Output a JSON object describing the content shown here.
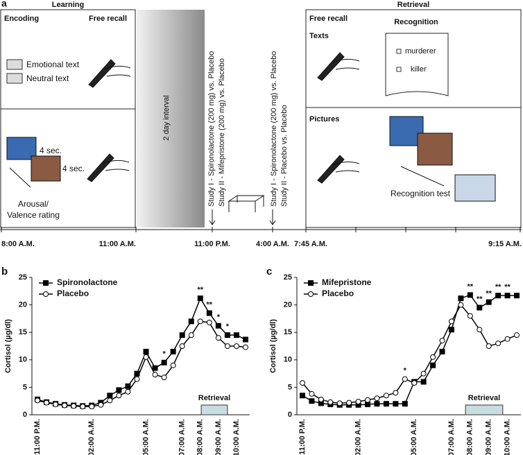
{
  "panel_a": {
    "label": "a",
    "learning": {
      "title": "Learning",
      "encoding": "Encoding",
      "free_recall": "Free recall",
      "texts": [
        "Emotional text",
        "Neutral text"
      ],
      "durations": [
        "4 sec.",
        "4 sec."
      ],
      "rating": [
        "Arousal/",
        "Valence rating"
      ]
    },
    "interval": "2 day interval",
    "treatment_evening": [
      "Study I - Spironolactone (200 mg) vs. Placebo",
      "Study II - Mifepristone (200 mg) vs. Placebo"
    ],
    "treatment_morning": [
      "Study I - Spironolactone (200 mg) vs. Placebo",
      "Study II - Placebo vs. Placebo"
    ],
    "retrieval": {
      "title": "Retrieval",
      "free_recall": "Free recall",
      "texts": "Texts",
      "recognition": "Recognition",
      "words": [
        "murderer",
        "killer"
      ],
      "pictures": "Pictures",
      "recognition_test": "Recognition test"
    },
    "times": [
      "8:00 A.M.",
      "11:00 A.M.",
      "11:00 P.M.",
      "4:00 A.M.",
      "7:45 A.M.",
      "9:15 A.M."
    ]
  },
  "chart_data": [
    {
      "type": "line",
      "panel": "b",
      "ylabel": "Cortisol (µg/dl)",
      "categories": [
        "11:00 P.M.",
        null,
        null,
        null,
        null,
        null,
        "02:00 A.M.",
        null,
        null,
        null,
        null,
        null,
        "05:00 A.M.",
        null,
        null,
        null,
        "07:00 A.M.",
        null,
        "08:00 A.M.",
        null,
        "09:00 A.M.",
        null,
        "10:00 A.M.",
        null
      ],
      "series": [
        {
          "name": "Spironolactone",
          "color": "#000000",
          "marker": "square",
          "marker_fill": "#000000",
          "values": [
            2.8,
            2.3,
            2.0,
            1.8,
            1.7,
            1.6,
            1.7,
            2.2,
            3.5,
            4.5,
            5.2,
            7.5,
            11.5,
            8.5,
            9.5,
            11.5,
            14.5,
            17.0,
            21.2,
            18.5,
            16.2,
            14.5,
            14.5,
            13.7
          ]
        },
        {
          "name": "Placebo",
          "color": "#000000",
          "marker": "circle",
          "marker_fill": "#ffffff",
          "values": [
            2.6,
            2.2,
            1.9,
            1.7,
            1.6,
            1.5,
            1.5,
            1.8,
            2.6,
            3.5,
            4.2,
            6.5,
            10.5,
            7.3,
            6.8,
            9.0,
            12.5,
            14.5,
            17.0,
            16.8,
            14.0,
            12.5,
            12.5,
            12.3
          ]
        }
      ],
      "significance": [
        null,
        null,
        null,
        null,
        null,
        null,
        null,
        null,
        null,
        null,
        null,
        null,
        null,
        null,
        "*",
        null,
        null,
        null,
        "**",
        "**",
        "*",
        "*",
        null,
        null
      ],
      "ylim": [
        0,
        25
      ],
      "yticks": [
        0,
        5,
        10,
        15,
        20,
        25
      ],
      "legend": "upper left",
      "period_label": "Retrieval"
    },
    {
      "type": "line",
      "panel": "c",
      "ylabel": "Cortisol (µg/dl)",
      "categories": [
        "11:00 P.M.",
        null,
        null,
        null,
        null,
        null,
        "02:00 A.M.",
        null,
        null,
        null,
        null,
        null,
        "05:00 A.M.",
        null,
        null,
        null,
        "07:00 A.M.",
        null,
        "08:00 A.M.",
        null,
        "09:00 A.M.",
        null,
        "10:00 A.M.",
        null
      ],
      "series": [
        {
          "name": "Mifepristone",
          "color": "#000000",
          "marker": "square",
          "marker_fill": "#000000",
          "values": [
            3.5,
            2.5,
            2.1,
            1.9,
            1.8,
            1.8,
            1.8,
            1.9,
            2.0,
            2.0,
            2.0,
            2.0,
            6.0,
            6.0,
            9.0,
            11.5,
            15.5,
            21.2,
            21.8,
            19.5,
            20.5,
            21.7,
            21.7,
            21.7
          ]
        },
        {
          "name": "Placebo",
          "color": "#000000",
          "marker": "circle",
          "marker_fill": "#ffffff",
          "values": [
            5.8,
            3.8,
            2.8,
            2.3,
            2.1,
            2.2,
            2.4,
            2.7,
            3.0,
            3.5,
            4.0,
            6.5,
            5.8,
            7.5,
            10.5,
            13.5,
            17.0,
            20.0,
            18.0,
            15.5,
            12.5,
            13.0,
            13.8,
            14.5
          ]
        }
      ],
      "significance": [
        null,
        null,
        null,
        null,
        null,
        null,
        null,
        null,
        null,
        null,
        null,
        "*",
        null,
        null,
        null,
        null,
        null,
        null,
        "**",
        "**",
        "**",
        "**",
        "**",
        null
      ],
      "ylim": [
        0,
        25
      ],
      "yticks": [
        0,
        5,
        10,
        15,
        20,
        25
      ],
      "legend": "upper left",
      "period_label": "Retrieval"
    }
  ]
}
